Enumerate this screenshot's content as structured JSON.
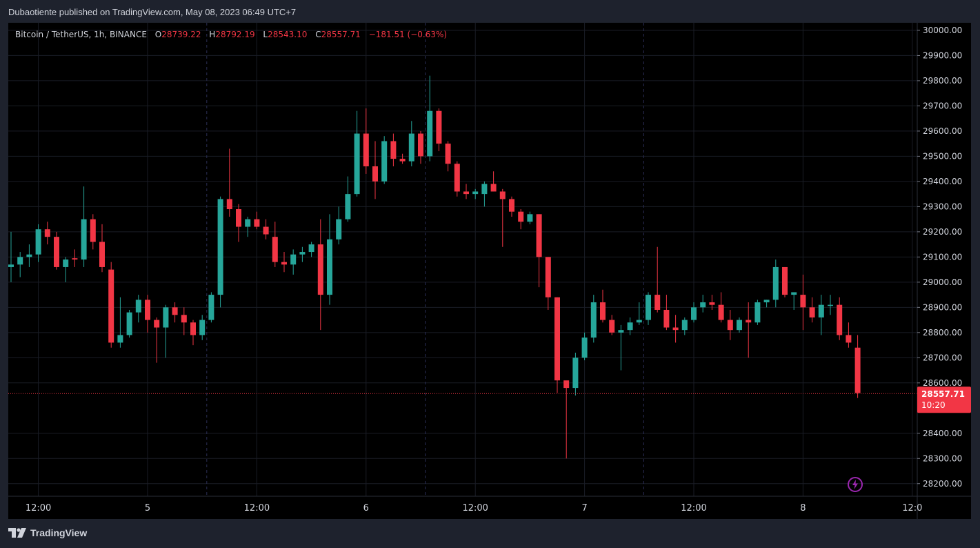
{
  "header": {
    "published_text": "Dubaotiente published on TradingView.com, May 08, 2023 06:49 UTC+7"
  },
  "legend": {
    "symbol": "Bitcoin / TetherUS, 1h, BINANCE",
    "o_label": "O",
    "o_value": "28739.22",
    "h_label": "H",
    "h_value": "28792.19",
    "l_label": "L",
    "l_value": "28543.10",
    "c_label": "C",
    "c_value": "28557.71",
    "change": "−181.51 (−0.63%)"
  },
  "footer": {
    "logo_text": "TradingView",
    "logo_icon": "tradingview-logo-icon",
    "action_icon": "lightning-icon"
  },
  "colors": {
    "up": "#26a69a",
    "down": "#f23645",
    "background": "#000000",
    "frame": "#1e222d",
    "grid": "#1a1d26",
    "text": "#d1d4dc"
  },
  "chart_data": {
    "type": "candlestick",
    "title": "Bitcoin / TetherUS, 1h, BINANCE",
    "ylim": [
      28150,
      30030
    ],
    "y_ticks": [
      30000,
      29900,
      29800,
      29700,
      29600,
      29500,
      29400,
      29300,
      29200,
      29100,
      29000,
      28900,
      28800,
      28700,
      28600,
      28400,
      28300,
      28200
    ],
    "y_tick_labels": [
      "30000.00",
      "29900.00",
      "29800.00",
      "29700.00",
      "29600.00",
      "29500.00",
      "29400.00",
      "29300.00",
      "29200.00",
      "29100.00",
      "29000.00",
      "28900.00",
      "28800.00",
      "28700.00",
      "28600.00",
      "28400.00",
      "28300.00",
      "28200.00"
    ],
    "x_tick_labels": [
      {
        "index": 3,
        "label": "12:00"
      },
      {
        "index": 15,
        "label": "5"
      },
      {
        "index": 27,
        "label": "12:00"
      },
      {
        "index": 39,
        "label": "6"
      },
      {
        "index": 51,
        "label": "12:00"
      },
      {
        "index": 63,
        "label": "7"
      },
      {
        "index": 75,
        "label": "12:00"
      },
      {
        "index": 87,
        "label": "8"
      },
      {
        "index": 99,
        "label": "12:0"
      }
    ],
    "session_separators": [
      21.5,
      45.5,
      69.5
    ],
    "last_price": {
      "value": 28557.71,
      "label": "28557.71",
      "countdown": "10:20"
    },
    "candles": [
      {
        "o": 29060,
        "h": 29200,
        "l": 29000,
        "c": 29070
      },
      {
        "o": 29070,
        "h": 29120,
        "l": 29020,
        "c": 29100
      },
      {
        "o": 29100,
        "h": 29150,
        "l": 29060,
        "c": 29110
      },
      {
        "o": 29110,
        "h": 29230,
        "l": 29080,
        "c": 29210
      },
      {
        "o": 29210,
        "h": 29240,
        "l": 29150,
        "c": 29180
      },
      {
        "o": 29180,
        "h": 29200,
        "l": 29050,
        "c": 29060
      },
      {
        "o": 29060,
        "h": 29100,
        "l": 29000,
        "c": 29090
      },
      {
        "o": 29095,
        "h": 29130,
        "l": 29060,
        "c": 29090
      },
      {
        "o": 29090,
        "h": 29380,
        "l": 29060,
        "c": 29250
      },
      {
        "o": 29250,
        "h": 29270,
        "l": 29130,
        "c": 29160
      },
      {
        "o": 29160,
        "h": 29230,
        "l": 29040,
        "c": 29060
      },
      {
        "o": 29050,
        "h": 29080,
        "l": 28740,
        "c": 28760
      },
      {
        "o": 28760,
        "h": 28940,
        "l": 28740,
        "c": 28790
      },
      {
        "o": 28790,
        "h": 28890,
        "l": 28780,
        "c": 28880
      },
      {
        "o": 28880,
        "h": 28950,
        "l": 28840,
        "c": 28930
      },
      {
        "o": 28930,
        "h": 28950,
        "l": 28800,
        "c": 28850
      },
      {
        "o": 28850,
        "h": 28860,
        "l": 28680,
        "c": 28820
      },
      {
        "o": 28820,
        "h": 28910,
        "l": 28700,
        "c": 28900
      },
      {
        "o": 28900,
        "h": 28920,
        "l": 28840,
        "c": 28870
      },
      {
        "o": 28870,
        "h": 28900,
        "l": 28790,
        "c": 28840
      },
      {
        "o": 28840,
        "h": 28850,
        "l": 28750,
        "c": 28790
      },
      {
        "o": 28790,
        "h": 28870,
        "l": 28770,
        "c": 28850
      },
      {
        "o": 28850,
        "h": 28960,
        "l": 28840,
        "c": 28950
      },
      {
        "o": 28950,
        "h": 29340,
        "l": 28900,
        "c": 29330
      },
      {
        "o": 29330,
        "h": 29530,
        "l": 29260,
        "c": 29290
      },
      {
        "o": 29290,
        "h": 29310,
        "l": 29160,
        "c": 29220
      },
      {
        "o": 29220,
        "h": 29260,
        "l": 29180,
        "c": 29250
      },
      {
        "o": 29250,
        "h": 29280,
        "l": 29210,
        "c": 29220
      },
      {
        "o": 29220,
        "h": 29250,
        "l": 29170,
        "c": 29190
      },
      {
        "o": 29180,
        "h": 29240,
        "l": 29060,
        "c": 29080
      },
      {
        "o": 29080,
        "h": 29120,
        "l": 29040,
        "c": 29070
      },
      {
        "o": 29070,
        "h": 29130,
        "l": 29030,
        "c": 29110
      },
      {
        "o": 29110,
        "h": 29140,
        "l": 29080,
        "c": 29120
      },
      {
        "o": 29120,
        "h": 29160,
        "l": 29100,
        "c": 29150
      },
      {
        "o": 29150,
        "h": 29250,
        "l": 28810,
        "c": 28950
      },
      {
        "o": 28950,
        "h": 29270,
        "l": 28910,
        "c": 29170
      },
      {
        "o": 29170,
        "h": 29300,
        "l": 29150,
        "c": 29250
      },
      {
        "o": 29250,
        "h": 29420,
        "l": 29240,
        "c": 29350
      },
      {
        "o": 29350,
        "h": 29680,
        "l": 29340,
        "c": 29590
      },
      {
        "o": 29590,
        "h": 29690,
        "l": 29430,
        "c": 29460
      },
      {
        "o": 29460,
        "h": 29560,
        "l": 29330,
        "c": 29400
      },
      {
        "o": 29400,
        "h": 29580,
        "l": 29390,
        "c": 29560
      },
      {
        "o": 29560,
        "h": 29590,
        "l": 29460,
        "c": 29490
      },
      {
        "o": 29490,
        "h": 29510,
        "l": 29470,
        "c": 29480
      },
      {
        "o": 29480,
        "h": 29640,
        "l": 29460,
        "c": 29590
      },
      {
        "o": 29590,
        "h": 29600,
        "l": 29470,
        "c": 29500
      },
      {
        "o": 29500,
        "h": 29820,
        "l": 29480,
        "c": 29680
      },
      {
        "o": 29680,
        "h": 29690,
        "l": 29520,
        "c": 29550
      },
      {
        "o": 29550,
        "h": 29560,
        "l": 29440,
        "c": 29470
      },
      {
        "o": 29470,
        "h": 29480,
        "l": 29340,
        "c": 29360
      },
      {
        "o": 29360,
        "h": 29390,
        "l": 29330,
        "c": 29350
      },
      {
        "o": 29350,
        "h": 29370,
        "l": 29330,
        "c": 29360
      },
      {
        "o": 29350,
        "h": 29400,
        "l": 29300,
        "c": 29390
      },
      {
        "o": 29390,
        "h": 29440,
        "l": 29360,
        "c": 29360
      },
      {
        "o": 29360,
        "h": 29370,
        "l": 29140,
        "c": 29330
      },
      {
        "o": 29330,
        "h": 29340,
        "l": 29260,
        "c": 29280
      },
      {
        "o": 29280,
        "h": 29290,
        "l": 29210,
        "c": 29240
      },
      {
        "o": 29240,
        "h": 29280,
        "l": 29230,
        "c": 29270
      },
      {
        "o": 29270,
        "h": 29270,
        "l": 28980,
        "c": 29100
      },
      {
        "o": 29100,
        "h": 29100,
        "l": 28890,
        "c": 28940
      },
      {
        "o": 28940,
        "h": 28940,
        "l": 28560,
        "c": 28610
      },
      {
        "o": 28610,
        "h": 28600,
        "l": 28300,
        "c": 28580
      },
      {
        "o": 28580,
        "h": 28720,
        "l": 28550,
        "c": 28700
      },
      {
        "o": 28700,
        "h": 28800,
        "l": 28690,
        "c": 28780
      },
      {
        "o": 28780,
        "h": 28950,
        "l": 28760,
        "c": 28920
      },
      {
        "o": 28920,
        "h": 28970,
        "l": 28840,
        "c": 28850
      },
      {
        "o": 28850,
        "h": 28870,
        "l": 28790,
        "c": 28800
      },
      {
        "o": 28800,
        "h": 28830,
        "l": 28650,
        "c": 28810
      },
      {
        "o": 28810,
        "h": 28860,
        "l": 28790,
        "c": 28840
      },
      {
        "o": 28840,
        "h": 28920,
        "l": 28830,
        "c": 28850
      },
      {
        "o": 28850,
        "h": 28960,
        "l": 28830,
        "c": 28950
      },
      {
        "o": 28950,
        "h": 29140,
        "l": 28880,
        "c": 28890
      },
      {
        "o": 28890,
        "h": 28950,
        "l": 28810,
        "c": 28820
      },
      {
        "o": 28820,
        "h": 28870,
        "l": 28760,
        "c": 28810
      },
      {
        "o": 28810,
        "h": 28860,
        "l": 28790,
        "c": 28850
      },
      {
        "o": 28850,
        "h": 28920,
        "l": 28840,
        "c": 28900
      },
      {
        "o": 28900,
        "h": 28950,
        "l": 28880,
        "c": 28920
      },
      {
        "o": 28920,
        "h": 28950,
        "l": 28890,
        "c": 28910
      },
      {
        "o": 28910,
        "h": 28960,
        "l": 28840,
        "c": 28850
      },
      {
        "o": 28850,
        "h": 28890,
        "l": 28770,
        "c": 28810
      },
      {
        "o": 28810,
        "h": 28860,
        "l": 28800,
        "c": 28850
      },
      {
        "o": 28850,
        "h": 28920,
        "l": 28700,
        "c": 28840
      },
      {
        "o": 28840,
        "h": 28930,
        "l": 28830,
        "c": 28920
      },
      {
        "o": 28920,
        "h": 28930,
        "l": 28900,
        "c": 28930
      },
      {
        "o": 28930,
        "h": 29090,
        "l": 28900,
        "c": 29060
      },
      {
        "o": 29060,
        "h": 29060,
        "l": 28940,
        "c": 28950
      },
      {
        "o": 28950,
        "h": 28960,
        "l": 28890,
        "c": 28960
      },
      {
        "o": 28950,
        "h": 29030,
        "l": 28810,
        "c": 28900
      },
      {
        "o": 28900,
        "h": 28940,
        "l": 28840,
        "c": 28860
      },
      {
        "o": 28860,
        "h": 28950,
        "l": 28790,
        "c": 28910
      },
      {
        "o": 28910,
        "h": 28950,
        "l": 28870,
        "c": 28910
      },
      {
        "o": 28910,
        "h": 28940,
        "l": 28770,
        "c": 28790
      },
      {
        "o": 28790,
        "h": 28840,
        "l": 28740,
        "c": 28760
      },
      {
        "o": 28740,
        "h": 28790,
        "l": 28540,
        "c": 28560
      }
    ]
  }
}
